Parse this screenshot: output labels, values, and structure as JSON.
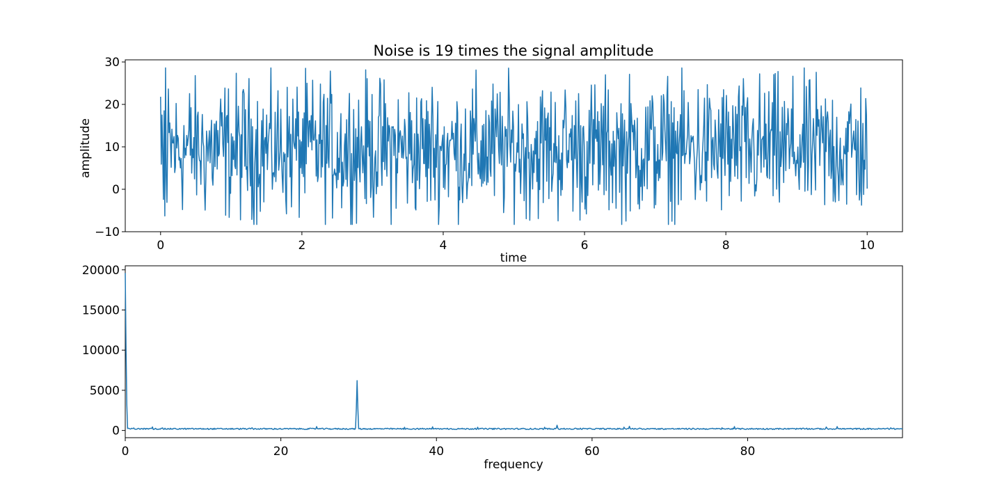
{
  "figure": {
    "title": "Noise is 19 times the signal amplitude"
  },
  "chart_data": [
    {
      "type": "line",
      "title": "Noise is 19 times the signal amplitude",
      "xlabel": "time",
      "ylabel": "amplitude",
      "xlim": [
        -0.5,
        10.5
      ],
      "ylim": [
        -10,
        30.5
      ],
      "xticks": [
        0,
        2,
        4,
        6,
        8,
        10
      ],
      "yticks": [
        -10,
        0,
        10,
        20,
        30
      ],
      "xtick_labels": [
        "0",
        "2",
        "4",
        "6",
        "8",
        "10"
      ],
      "ytick_labels": [
        "−10",
        "0",
        "10",
        "20",
        "30"
      ],
      "series_color": "#1f77b4",
      "grid": false,
      "series": [
        {
          "description": "noisy sinusoid sampled over 0–10 s, centered near 10, mostly between -8 and 28",
          "x_range": [
            0,
            10
          ],
          "sample_count": 1000,
          "mean": 9.5,
          "approx_min": -8.3,
          "approx_max": 28.6,
          "first_values": [
            21.8,
            5.9,
            17.5,
            9.0,
            -2.4,
            18.5,
            -6.3,
            28.6,
            3.2,
            -3.1
          ]
        }
      ]
    },
    {
      "type": "line",
      "title": "",
      "xlabel": "frequency",
      "ylabel": "",
      "xlim": [
        0,
        99.9
      ],
      "ylim": [
        -900,
        20500
      ],
      "xticks": [
        0,
        20,
        40,
        60,
        80
      ],
      "yticks": [
        0,
        5000,
        10000,
        15000,
        20000
      ],
      "xtick_labels": [
        "0",
        "20",
        "40",
        "60",
        "80"
      ],
      "ytick_labels": [
        "0",
        "5000",
        "10000",
        "15000",
        "20000"
      ],
      "series_color": "#1f77b4",
      "grid": false,
      "series": [
        {
          "description": "magnitude spectrum: DC spike near 19600 at 0, noise floor ~200, peak ~6200 near 30",
          "x_range": [
            0,
            99.9
          ],
          "noise_floor": 200,
          "dc_value": 19600,
          "peaks": [
            {
              "x": 0,
              "y": 19600
            },
            {
              "x": 29.8,
              "y": 6200
            },
            {
              "x": 55.5,
              "y": 650
            },
            {
              "x": 24.6,
              "y": 480
            },
            {
              "x": 64.8,
              "y": 520
            },
            {
              "x": 91.5,
              "y": 480
            }
          ]
        }
      ]
    }
  ]
}
